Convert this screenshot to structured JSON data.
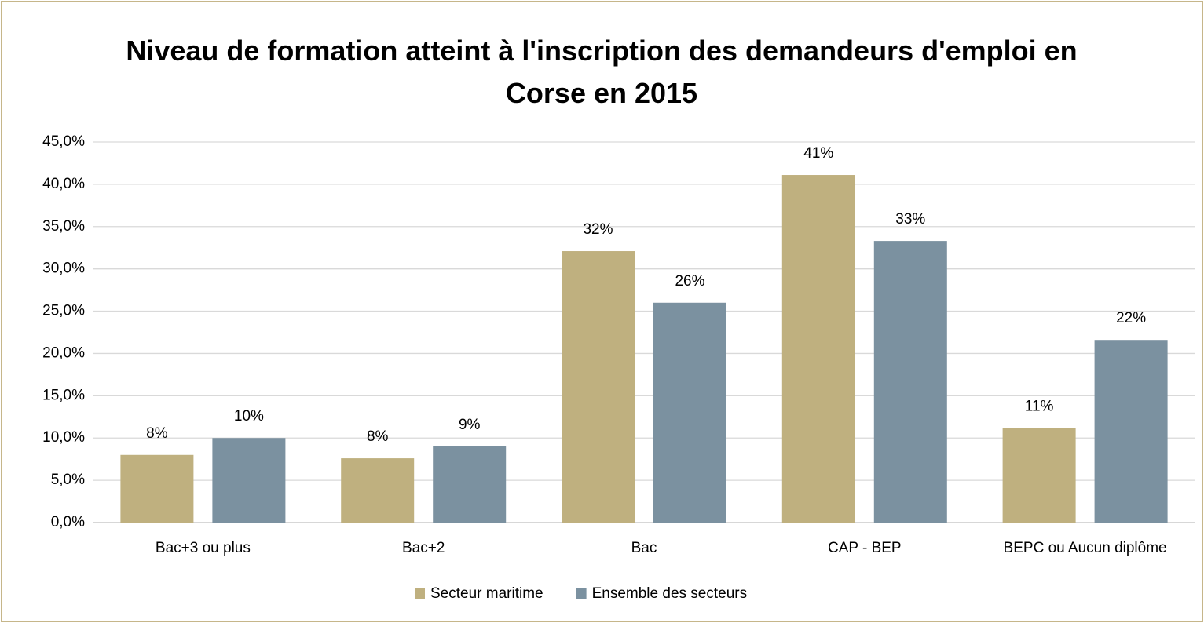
{
  "chart_data": {
    "type": "bar",
    "title": "Niveau de formation atteint à l'inscription des demandeurs d'emploi en Corse en 2015",
    "categories": [
      "Bac+3 ou plus",
      "Bac+2",
      "Bac",
      "CAP - BEP",
      "BEPC ou Aucun diplôme"
    ],
    "series": [
      {
        "name": "Secteur maritime",
        "color": "#bfb07f",
        "values": [
          8.0,
          7.6,
          32.1,
          41.1,
          11.2
        ],
        "value_labels": [
          "8%",
          "8%",
          "32%",
          "41%",
          "11%"
        ]
      },
      {
        "name": "Ensemble des secteurs",
        "color": "#7b91a0",
        "values": [
          10.0,
          9.0,
          26.0,
          33.3,
          21.6
        ],
        "value_labels": [
          "10%",
          "9%",
          "26%",
          "33%",
          "22%"
        ]
      }
    ],
    "ylim": [
      0,
      45
    ],
    "yticks": [
      {
        "value": 0,
        "label": "0,0%"
      },
      {
        "value": 5,
        "label": "5,0%"
      },
      {
        "value": 10,
        "label": "10,0%"
      },
      {
        "value": 15,
        "label": "15,0%"
      },
      {
        "value": 20,
        "label": "20,0%"
      },
      {
        "value": 25,
        "label": "25,0%"
      },
      {
        "value": 30,
        "label": "30,0%"
      },
      {
        "value": 35,
        "label": "35,0%"
      },
      {
        "value": 40,
        "label": "40,0%"
      },
      {
        "value": 45,
        "label": "45,0%"
      }
    ],
    "grid": true,
    "legend": "bottom"
  }
}
